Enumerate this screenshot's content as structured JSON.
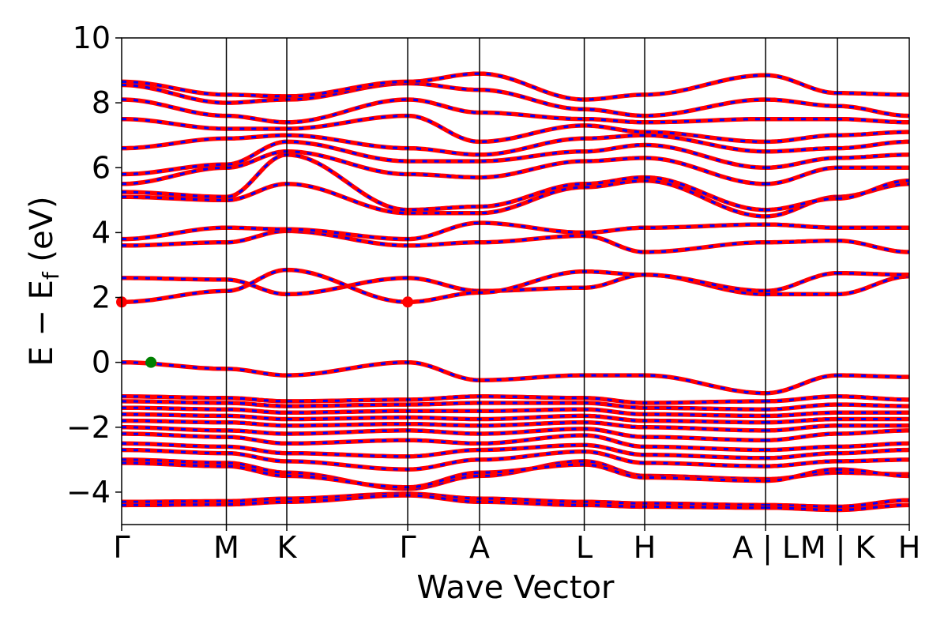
{
  "chart_data": {
    "type": "line",
    "title": "",
    "xlabel": "Wave Vector",
    "ylabel": "E − E",
    "ylabel_sub": "f",
    "ylabel_unit": " (eV)",
    "ylim": [
      -5,
      10
    ],
    "yticks": [
      -4,
      -2,
      0,
      2,
      4,
      6,
      8,
      10
    ],
    "ytick_labels": [
      "−4",
      "−2",
      "0",
      "2",
      "4",
      "6",
      "8",
      "10"
    ],
    "kpath": [
      {
        "label": "Γ",
        "k": 0.0
      },
      {
        "label": "M",
        "k": 1.0
      },
      {
        "label": "K",
        "k": 1.577
      },
      {
        "label": "Γ",
        "k": 2.732
      },
      {
        "label": "A",
        "k": 3.418
      },
      {
        "label": "L",
        "k": 4.418
      },
      {
        "label": "H",
        "k": 4.995
      },
      {
        "label": "A | L",
        "k": 6.15
      },
      {
        "label": "M | K",
        "k": 6.836
      },
      {
        "label": "H",
        "k": 7.522
      }
    ],
    "segment_breaks": [
      6.15,
      6.836
    ],
    "colors": {
      "spin_up": "#ff0000",
      "spin_down": "#0000ff",
      "vbm": "#008000",
      "cbm": "#ff0000",
      "kline": "#000000"
    },
    "vbm": {
      "k": 0.28,
      "E": 0.0
    },
    "cbm": [
      {
        "k": 0.0,
        "E": 1.86
      },
      {
        "k": 2.732,
        "E": 1.86
      }
    ],
    "bands": [
      [
        -4.3,
        -4.28,
        -4.2,
        -4.05,
        -4.2,
        -4.3,
        -4.35,
        -4.4,
        -4.45,
        -4.25
      ],
      [
        -4.4,
        -4.38,
        -4.3,
        -4.1,
        -4.3,
        -4.4,
        -4.45,
        -4.48,
        -4.55,
        -4.4
      ],
      [
        -3.0,
        -3.1,
        -3.4,
        -3.9,
        -3.5,
        -3.05,
        -3.5,
        -3.6,
        -3.4,
        -3.45
      ],
      [
        -3.1,
        -3.2,
        -3.5,
        -3.85,
        -3.4,
        -3.15,
        -3.55,
        -3.65,
        -3.3,
        -3.5
      ],
      [
        -2.7,
        -2.8,
        -3.05,
        -3.3,
        -3.0,
        -2.75,
        -3.1,
        -3.2,
        -3.05,
        -3.0
      ],
      [
        -2.5,
        -2.6,
        -2.8,
        -2.9,
        -2.7,
        -2.55,
        -2.85,
        -2.95,
        -2.8,
        -2.7
      ],
      [
        -2.2,
        -2.3,
        -2.5,
        -2.4,
        -2.5,
        -2.25,
        -2.6,
        -2.7,
        -2.6,
        -2.5
      ],
      [
        -2.0,
        -2.1,
        -2.2,
        -2.1,
        -2.2,
        -2.05,
        -2.3,
        -2.4,
        -2.2,
        -2.1
      ],
      [
        -1.8,
        -1.85,
        -1.95,
        -1.9,
        -1.95,
        -1.85,
        -2.0,
        -2.1,
        -1.95,
        -1.95
      ],
      [
        -1.6,
        -1.65,
        -1.75,
        -1.7,
        -1.75,
        -1.65,
        -1.8,
        -1.85,
        -1.75,
        -1.75
      ],
      [
        -1.4,
        -1.45,
        -1.55,
        -1.5,
        -1.5,
        -1.45,
        -1.6,
        -1.65,
        -1.55,
        -1.55
      ],
      [
        -1.2,
        -1.25,
        -1.35,
        -1.3,
        -1.25,
        -1.25,
        -1.4,
        -1.45,
        -1.3,
        -1.35
      ],
      [
        -1.05,
        -1.1,
        -1.2,
        -1.15,
        -1.05,
        -1.1,
        -1.25,
        -1.2,
        -1.05,
        -1.15
      ],
      [
        -0.0,
        -0.2,
        -0.4,
        -0.0,
        -0.55,
        -0.4,
        -0.4,
        -0.95,
        -0.4,
        -0.45
      ],
      [
        2.6,
        2.55,
        2.1,
        2.6,
        2.2,
        2.3,
        2.7,
        2.1,
        2.1,
        2.65
      ],
      [
        1.86,
        2.2,
        2.85,
        1.86,
        2.15,
        2.8,
        2.7,
        2.2,
        2.75,
        2.7
      ],
      [
        3.6,
        3.7,
        4.05,
        3.6,
        3.7,
        3.9,
        3.4,
        3.7,
        3.75,
        3.4
      ],
      [
        3.8,
        4.15,
        4.1,
        3.8,
        4.3,
        4.0,
        4.15,
        4.25,
        4.15,
        4.15
      ],
      [
        5.1,
        5.0,
        5.5,
        4.6,
        4.6,
        5.4,
        5.6,
        4.5,
        5.1,
        5.5
      ],
      [
        5.25,
        5.1,
        6.4,
        4.7,
        4.8,
        5.5,
        5.7,
        4.7,
        5.05,
        5.6
      ],
      [
        5.5,
        6.0,
        6.5,
        5.8,
        5.7,
        6.2,
        6.3,
        5.5,
        6.0,
        6.0
      ],
      [
        5.8,
        6.1,
        6.8,
        6.2,
        6.2,
        6.5,
        6.7,
        6.0,
        6.3,
        6.4
      ],
      [
        6.6,
        6.9,
        7.0,
        6.6,
        6.4,
        6.9,
        7.0,
        6.5,
        6.6,
        6.8
      ],
      [
        7.5,
        7.2,
        7.2,
        7.6,
        6.8,
        7.3,
        7.1,
        6.8,
        7.0,
        7.1
      ],
      [
        8.1,
        7.6,
        7.4,
        8.1,
        7.7,
        7.5,
        7.4,
        7.5,
        7.5,
        7.4
      ],
      [
        8.55,
        8.0,
        8.1,
        8.6,
        8.4,
        7.8,
        7.6,
        8.1,
        7.9,
        7.6
      ],
      [
        8.65,
        8.25,
        8.2,
        8.65,
        8.9,
        8.1,
        8.25,
        8.85,
        8.3,
        8.25
      ]
    ]
  }
}
